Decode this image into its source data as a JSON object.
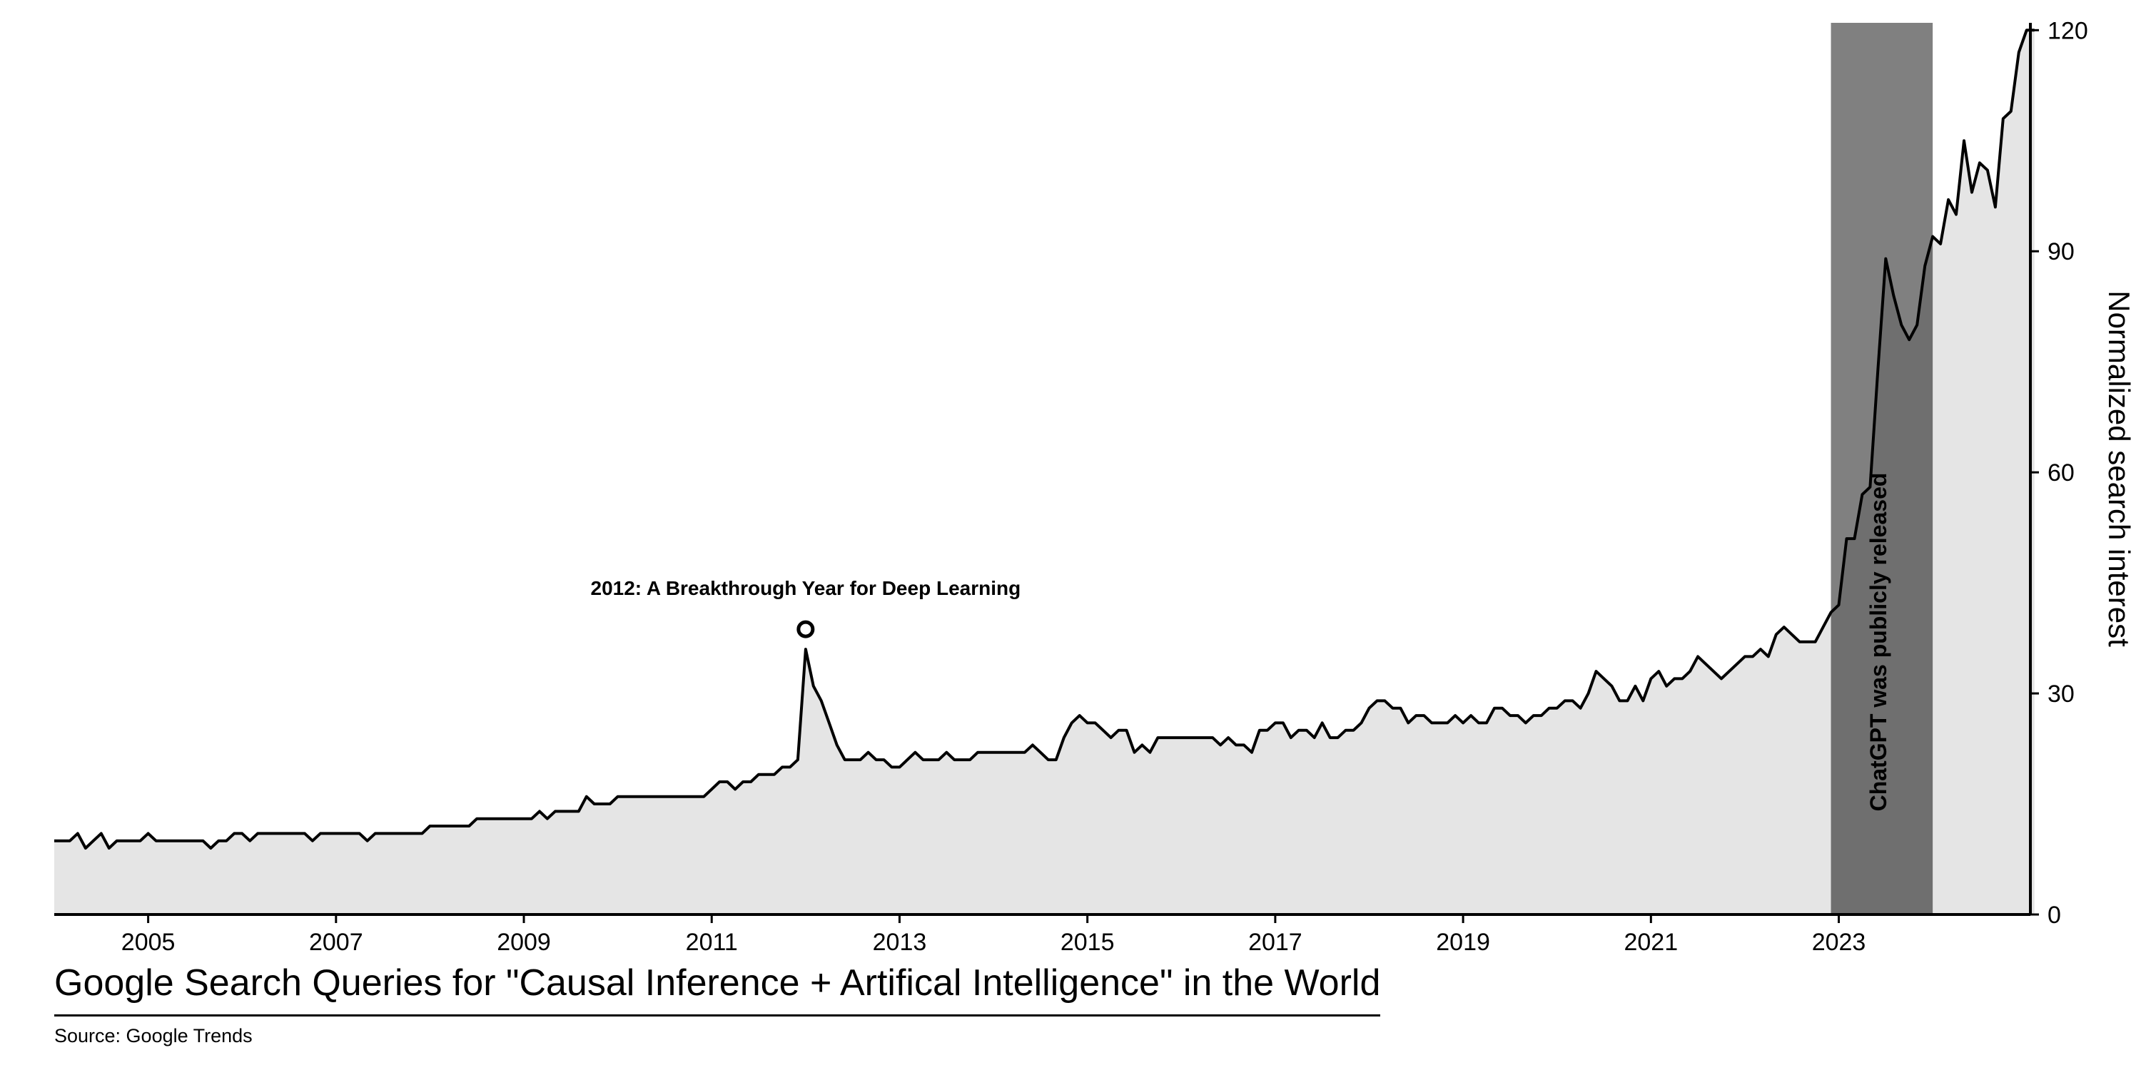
{
  "chart_data": {
    "type": "area",
    "title": "Google Search Queries for \"Causal Inference + Artifical Intelligence\" in the World",
    "source": "Source: Google Trends",
    "ylabel": "Normalized search interest",
    "xlabel": "",
    "y_axis_position": "right",
    "ylim": [
      0,
      121
    ],
    "xlim": [
      "2004-01",
      "2024-12"
    ],
    "grid": false,
    "x_ticks": [
      "2005",
      "2007",
      "2009",
      "2011",
      "2013",
      "2015",
      "2017",
      "2019",
      "2021",
      "2023"
    ],
    "y_ticks": [
      "0",
      "30",
      "60",
      "90",
      "120"
    ],
    "annotations": [
      {
        "label": "2012: A Breakthrough Year for Deep Learning",
        "x": "2012-01",
        "y": 36,
        "marker": "open-circle"
      }
    ],
    "shaded_regions": [
      {
        "label": "ChatGPT was publicly released",
        "start": "2022-12",
        "end": "2023-12"
      }
    ],
    "colors": {
      "line": "#000000",
      "fill": "#e5e5e5",
      "band_light": "#808080",
      "band_dark": "#6f6f6f",
      "marker": "#000000"
    },
    "series": [
      {
        "points": [
          [
            "2004-01",
            10
          ],
          [
            "2004-02",
            10
          ],
          [
            "2004-03",
            10
          ],
          [
            "2004-04",
            11
          ],
          [
            "2004-05",
            9
          ],
          [
            "2004-06",
            10
          ],
          [
            "2004-07",
            11
          ],
          [
            "2004-08",
            9
          ],
          [
            "2004-09",
            10
          ],
          [
            "2004-10",
            10
          ],
          [
            "2004-11",
            10
          ],
          [
            "2004-12",
            10
          ],
          [
            "2005-01",
            11
          ],
          [
            "2005-02",
            10
          ],
          [
            "2005-03",
            10
          ],
          [
            "2005-04",
            10
          ],
          [
            "2005-05",
            10
          ],
          [
            "2005-06",
            10
          ],
          [
            "2005-07",
            10
          ],
          [
            "2005-08",
            10
          ],
          [
            "2005-09",
            9
          ],
          [
            "2005-10",
            10
          ],
          [
            "2005-11",
            10
          ],
          [
            "2005-12",
            11
          ],
          [
            "2006-01",
            11
          ],
          [
            "2006-02",
            10
          ],
          [
            "2006-03",
            11
          ],
          [
            "2006-04",
            11
          ],
          [
            "2006-05",
            11
          ],
          [
            "2006-06",
            11
          ],
          [
            "2006-07",
            11
          ],
          [
            "2006-08",
            11
          ],
          [
            "2006-09",
            11
          ],
          [
            "2006-10",
            10
          ],
          [
            "2006-11",
            11
          ],
          [
            "2006-12",
            11
          ],
          [
            "2007-01",
            11
          ],
          [
            "2007-02",
            11
          ],
          [
            "2007-03",
            11
          ],
          [
            "2007-04",
            11
          ],
          [
            "2007-05",
            10
          ],
          [
            "2007-06",
            11
          ],
          [
            "2007-07",
            11
          ],
          [
            "2007-08",
            11
          ],
          [
            "2007-09",
            11
          ],
          [
            "2007-10",
            11
          ],
          [
            "2007-11",
            11
          ],
          [
            "2007-12",
            11
          ],
          [
            "2008-01",
            12
          ],
          [
            "2008-02",
            12
          ],
          [
            "2008-03",
            12
          ],
          [
            "2008-04",
            12
          ],
          [
            "2008-05",
            12
          ],
          [
            "2008-06",
            12
          ],
          [
            "2008-07",
            13
          ],
          [
            "2008-08",
            13
          ],
          [
            "2008-09",
            13
          ],
          [
            "2008-10",
            13
          ],
          [
            "2008-11",
            13
          ],
          [
            "2008-12",
            13
          ],
          [
            "2009-01",
            13
          ],
          [
            "2009-02",
            13
          ],
          [
            "2009-03",
            14
          ],
          [
            "2009-04",
            13
          ],
          [
            "2009-05",
            14
          ],
          [
            "2009-06",
            14
          ],
          [
            "2009-07",
            14
          ],
          [
            "2009-08",
            14
          ],
          [
            "2009-09",
            16
          ],
          [
            "2009-10",
            15
          ],
          [
            "2009-11",
            15
          ],
          [
            "2009-12",
            15
          ],
          [
            "2010-01",
            16
          ],
          [
            "2010-02",
            16
          ],
          [
            "2010-03",
            16
          ],
          [
            "2010-04",
            16
          ],
          [
            "2010-05",
            16
          ],
          [
            "2010-06",
            16
          ],
          [
            "2010-07",
            16
          ],
          [
            "2010-08",
            16
          ],
          [
            "2010-09",
            16
          ],
          [
            "2010-10",
            16
          ],
          [
            "2010-11",
            16
          ],
          [
            "2010-12",
            16
          ],
          [
            "2011-01",
            17
          ],
          [
            "2011-02",
            18
          ],
          [
            "2011-03",
            18
          ],
          [
            "2011-04",
            17
          ],
          [
            "2011-05",
            18
          ],
          [
            "2011-06",
            18
          ],
          [
            "2011-07",
            19
          ],
          [
            "2011-08",
            19
          ],
          [
            "2011-09",
            19
          ],
          [
            "2011-10",
            20
          ],
          [
            "2011-11",
            20
          ],
          [
            "2011-12",
            21
          ],
          [
            "2012-01",
            36
          ],
          [
            "2012-02",
            31
          ],
          [
            "2012-03",
            29
          ],
          [
            "2012-04",
            26
          ],
          [
            "2012-05",
            23
          ],
          [
            "2012-06",
            21
          ],
          [
            "2012-07",
            21
          ],
          [
            "2012-08",
            21
          ],
          [
            "2012-09",
            22
          ],
          [
            "2012-10",
            21
          ],
          [
            "2012-11",
            21
          ],
          [
            "2012-12",
            20
          ],
          [
            "2013-01",
            20
          ],
          [
            "2013-02",
            21
          ],
          [
            "2013-03",
            22
          ],
          [
            "2013-04",
            21
          ],
          [
            "2013-05",
            21
          ],
          [
            "2013-06",
            21
          ],
          [
            "2013-07",
            22
          ],
          [
            "2013-08",
            21
          ],
          [
            "2013-09",
            21
          ],
          [
            "2013-10",
            21
          ],
          [
            "2013-11",
            22
          ],
          [
            "2013-12",
            22
          ],
          [
            "2014-01",
            22
          ],
          [
            "2014-02",
            22
          ],
          [
            "2014-03",
            22
          ],
          [
            "2014-04",
            22
          ],
          [
            "2014-05",
            22
          ],
          [
            "2014-06",
            23
          ],
          [
            "2014-07",
            22
          ],
          [
            "2014-08",
            21
          ],
          [
            "2014-09",
            21
          ],
          [
            "2014-10",
            24
          ],
          [
            "2014-11",
            26
          ],
          [
            "2014-12",
            27
          ],
          [
            "2015-01",
            26
          ],
          [
            "2015-02",
            26
          ],
          [
            "2015-03",
            25
          ],
          [
            "2015-04",
            24
          ],
          [
            "2015-05",
            25
          ],
          [
            "2015-06",
            25
          ],
          [
            "2015-07",
            22
          ],
          [
            "2015-08",
            23
          ],
          [
            "2015-09",
            22
          ],
          [
            "2015-10",
            24
          ],
          [
            "2015-11",
            24
          ],
          [
            "2015-12",
            24
          ],
          [
            "2016-01",
            24
          ],
          [
            "2016-02",
            24
          ],
          [
            "2016-03",
            24
          ],
          [
            "2016-04",
            24
          ],
          [
            "2016-05",
            24
          ],
          [
            "2016-06",
            23
          ],
          [
            "2016-07",
            24
          ],
          [
            "2016-08",
            23
          ],
          [
            "2016-09",
            23
          ],
          [
            "2016-10",
            22
          ],
          [
            "2016-11",
            25
          ],
          [
            "2016-12",
            25
          ],
          [
            "2017-01",
            26
          ],
          [
            "2017-02",
            26
          ],
          [
            "2017-03",
            24
          ],
          [
            "2017-04",
            25
          ],
          [
            "2017-05",
            25
          ],
          [
            "2017-06",
            24
          ],
          [
            "2017-07",
            26
          ],
          [
            "2017-08",
            24
          ],
          [
            "2017-09",
            24
          ],
          [
            "2017-10",
            25
          ],
          [
            "2017-11",
            25
          ],
          [
            "2017-12",
            26
          ],
          [
            "2018-01",
            28
          ],
          [
            "2018-02",
            29
          ],
          [
            "2018-03",
            29
          ],
          [
            "2018-04",
            28
          ],
          [
            "2018-05",
            28
          ],
          [
            "2018-06",
            26
          ],
          [
            "2018-07",
            27
          ],
          [
            "2018-08",
            27
          ],
          [
            "2018-09",
            26
          ],
          [
            "2018-10",
            26
          ],
          [
            "2018-11",
            26
          ],
          [
            "2018-12",
            27
          ],
          [
            "2019-01",
            26
          ],
          [
            "2019-02",
            27
          ],
          [
            "2019-03",
            26
          ],
          [
            "2019-04",
            26
          ],
          [
            "2019-05",
            28
          ],
          [
            "2019-06",
            28
          ],
          [
            "2019-07",
            27
          ],
          [
            "2019-08",
            27
          ],
          [
            "2019-09",
            26
          ],
          [
            "2019-10",
            27
          ],
          [
            "2019-11",
            27
          ],
          [
            "2019-12",
            28
          ],
          [
            "2020-01",
            28
          ],
          [
            "2020-02",
            29
          ],
          [
            "2020-03",
            29
          ],
          [
            "2020-04",
            28
          ],
          [
            "2020-05",
            30
          ],
          [
            "2020-06",
            33
          ],
          [
            "2020-07",
            32
          ],
          [
            "2020-08",
            31
          ],
          [
            "2020-09",
            29
          ],
          [
            "2020-10",
            29
          ],
          [
            "2020-11",
            31
          ],
          [
            "2020-12",
            29
          ],
          [
            "2021-01",
            32
          ],
          [
            "2021-02",
            33
          ],
          [
            "2021-03",
            31
          ],
          [
            "2021-04",
            32
          ],
          [
            "2021-05",
            32
          ],
          [
            "2021-06",
            33
          ],
          [
            "2021-07",
            35
          ],
          [
            "2021-08",
            34
          ],
          [
            "2021-09",
            33
          ],
          [
            "2021-10",
            32
          ],
          [
            "2021-11",
            33
          ],
          [
            "2021-12",
            34
          ],
          [
            "2022-01",
            35
          ],
          [
            "2022-02",
            35
          ],
          [
            "2022-03",
            36
          ],
          [
            "2022-04",
            35
          ],
          [
            "2022-05",
            38
          ],
          [
            "2022-06",
            39
          ],
          [
            "2022-07",
            38
          ],
          [
            "2022-08",
            37
          ],
          [
            "2022-09",
            37
          ],
          [
            "2022-10",
            37
          ],
          [
            "2022-11",
            39
          ],
          [
            "2022-12",
            41
          ],
          [
            "2023-01",
            42
          ],
          [
            "2023-02",
            51
          ],
          [
            "2023-03",
            51
          ],
          [
            "2023-04",
            57
          ],
          [
            "2023-05",
            58
          ],
          [
            "2023-06",
            74
          ],
          [
            "2023-07",
            89
          ],
          [
            "2023-08",
            84
          ],
          [
            "2023-09",
            80
          ],
          [
            "2023-10",
            78
          ],
          [
            "2023-11",
            80
          ],
          [
            "2023-12",
            88
          ],
          [
            "2024-01",
            92
          ],
          [
            "2024-02",
            91
          ],
          [
            "2024-03",
            97
          ],
          [
            "2024-04",
            95
          ],
          [
            "2024-05",
            105
          ],
          [
            "2024-06",
            98
          ],
          [
            "2024-07",
            102
          ],
          [
            "2024-08",
            101
          ],
          [
            "2024-09",
            96
          ],
          [
            "2024-10",
            108
          ],
          [
            "2024-11",
            109
          ],
          [
            "2024-12",
            117
          ],
          [
            "2025-01",
            120
          ],
          [
            "2025-02",
            120
          ]
        ]
      }
    ]
  }
}
